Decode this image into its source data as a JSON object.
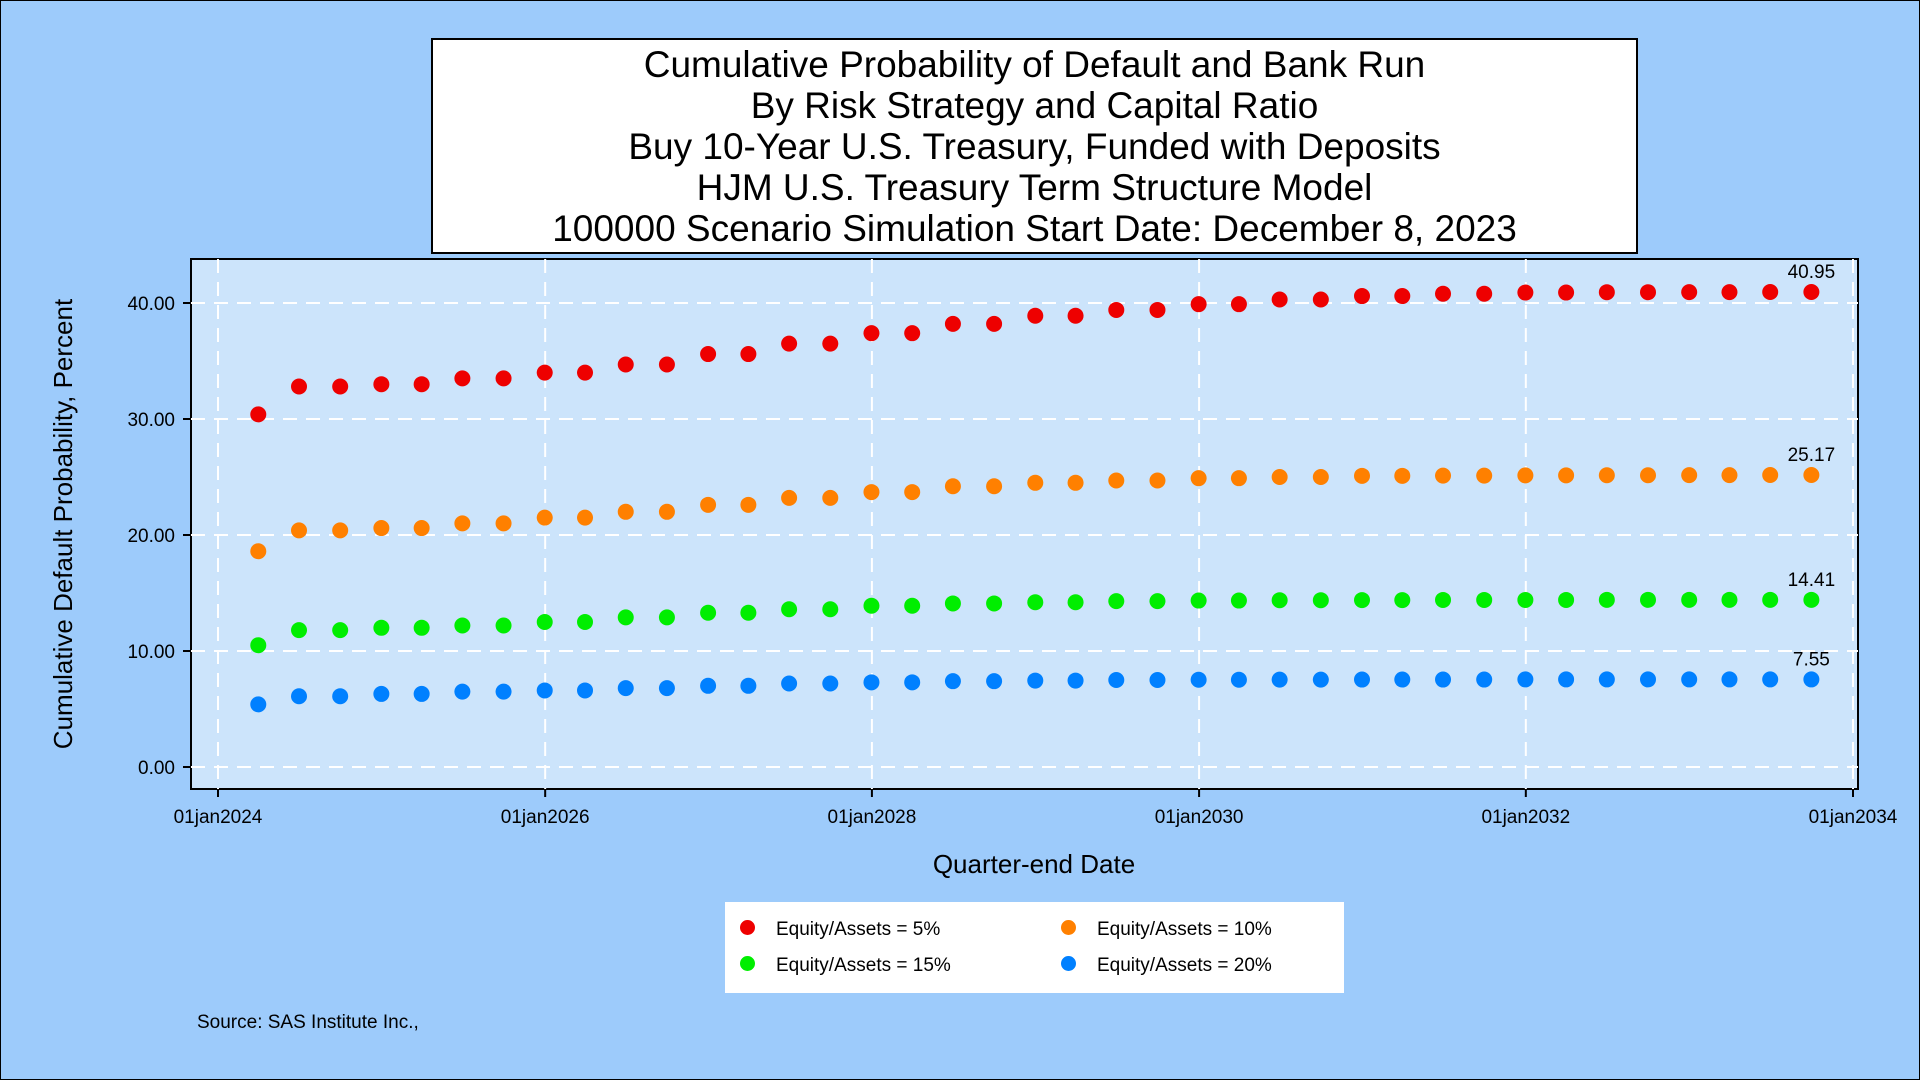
{
  "title_lines": [
    "Cumulative Probability of Default and Bank Run",
    "By Risk Strategy and Capital Ratio",
    "Buy 10-Year U.S. Treasury, Funded with Deposits",
    "HJM U.S. Treasury Term Structure Model",
    "100000 Scenario Simulation Start Date: December 8, 2023"
  ],
  "source": "Source: SAS Institute Inc.,",
  "chart_data": {
    "type": "scatter",
    "xlabel": "Quarter-end Date",
    "ylabel": "Cumulative Default Probability, Percent",
    "ylim": [
      0,
      44
    ],
    "xlim": [
      "2024-01-01",
      "2034-01-01"
    ],
    "x_ticks": [
      "01jan2024",
      "01jan2026",
      "01jan2028",
      "01jan2030",
      "01jan2032",
      "01jan2034"
    ],
    "x_tick_dates": [
      "2024-01-01",
      "2026-01-01",
      "2028-01-01",
      "2030-01-01",
      "2032-01-01",
      "2034-01-01"
    ],
    "y_ticks": [
      "0.00",
      "10.00",
      "20.00",
      "30.00",
      "40.00"
    ],
    "y_tick_values": [
      0,
      10,
      20,
      30,
      40
    ],
    "grid": true,
    "legend_position": "bottom",
    "x": [
      "2024-03-31",
      "2024-06-30",
      "2024-09-30",
      "2024-12-31",
      "2025-03-31",
      "2025-06-30",
      "2025-09-30",
      "2025-12-31",
      "2026-03-31",
      "2026-06-30",
      "2026-09-30",
      "2026-12-31",
      "2027-03-31",
      "2027-06-30",
      "2027-09-30",
      "2027-12-31",
      "2028-03-31",
      "2028-06-30",
      "2028-09-30",
      "2028-12-31",
      "2029-03-31",
      "2029-06-30",
      "2029-09-30",
      "2029-12-31",
      "2030-03-31",
      "2030-06-30",
      "2030-09-30",
      "2030-12-31",
      "2031-03-31",
      "2031-06-30",
      "2031-09-30",
      "2031-12-31",
      "2032-03-31",
      "2032-06-30",
      "2032-09-30",
      "2032-12-31",
      "2033-03-31",
      "2033-06-30",
      "2033-09-30"
    ],
    "series": [
      {
        "name": "Equity/Assets = 5%",
        "color": "#ee0000",
        "end_label": "40.95",
        "values": [
          30.4,
          32.8,
          32.8,
          33.0,
          33.0,
          33.5,
          33.5,
          34.0,
          34.0,
          34.7,
          34.7,
          35.6,
          35.6,
          36.5,
          36.5,
          37.4,
          37.4,
          38.2,
          38.2,
          38.9,
          38.9,
          39.4,
          39.4,
          39.9,
          39.9,
          40.3,
          40.3,
          40.6,
          40.6,
          40.8,
          40.8,
          40.9,
          40.9,
          40.93,
          40.93,
          40.94,
          40.94,
          40.95,
          40.95
        ]
      },
      {
        "name": "Equity/Assets = 10%",
        "color": "#ff8000",
        "end_label": "25.17",
        "values": [
          18.6,
          20.4,
          20.4,
          20.6,
          20.6,
          21.0,
          21.0,
          21.5,
          21.5,
          22.0,
          22.0,
          22.6,
          22.6,
          23.2,
          23.2,
          23.7,
          23.7,
          24.2,
          24.2,
          24.5,
          24.5,
          24.7,
          24.7,
          24.9,
          24.9,
          25.0,
          25.0,
          25.1,
          25.1,
          25.12,
          25.12,
          25.14,
          25.14,
          25.15,
          25.15,
          25.16,
          25.16,
          25.17,
          25.17
        ]
      },
      {
        "name": "Equity/Assets = 15%",
        "color": "#00ee00",
        "end_label": "14.41",
        "values": [
          10.5,
          11.8,
          11.8,
          12.0,
          12.0,
          12.2,
          12.2,
          12.5,
          12.5,
          12.9,
          12.9,
          13.3,
          13.3,
          13.6,
          13.6,
          13.9,
          13.9,
          14.1,
          14.1,
          14.2,
          14.2,
          14.3,
          14.3,
          14.35,
          14.35,
          14.38,
          14.38,
          14.39,
          14.39,
          14.4,
          14.4,
          14.4,
          14.4,
          14.41,
          14.41,
          14.41,
          14.41,
          14.41,
          14.41
        ]
      },
      {
        "name": "Equity/Assets = 20%",
        "color": "#0080ff",
        "end_label": "7.55",
        "values": [
          5.4,
          6.1,
          6.1,
          6.3,
          6.3,
          6.5,
          6.5,
          6.6,
          6.6,
          6.8,
          6.8,
          7.0,
          7.0,
          7.2,
          7.2,
          7.3,
          7.3,
          7.4,
          7.4,
          7.45,
          7.45,
          7.5,
          7.5,
          7.52,
          7.52,
          7.53,
          7.53,
          7.54,
          7.54,
          7.54,
          7.54,
          7.55,
          7.55,
          7.55,
          7.55,
          7.55,
          7.55,
          7.55,
          7.55
        ]
      }
    ]
  }
}
